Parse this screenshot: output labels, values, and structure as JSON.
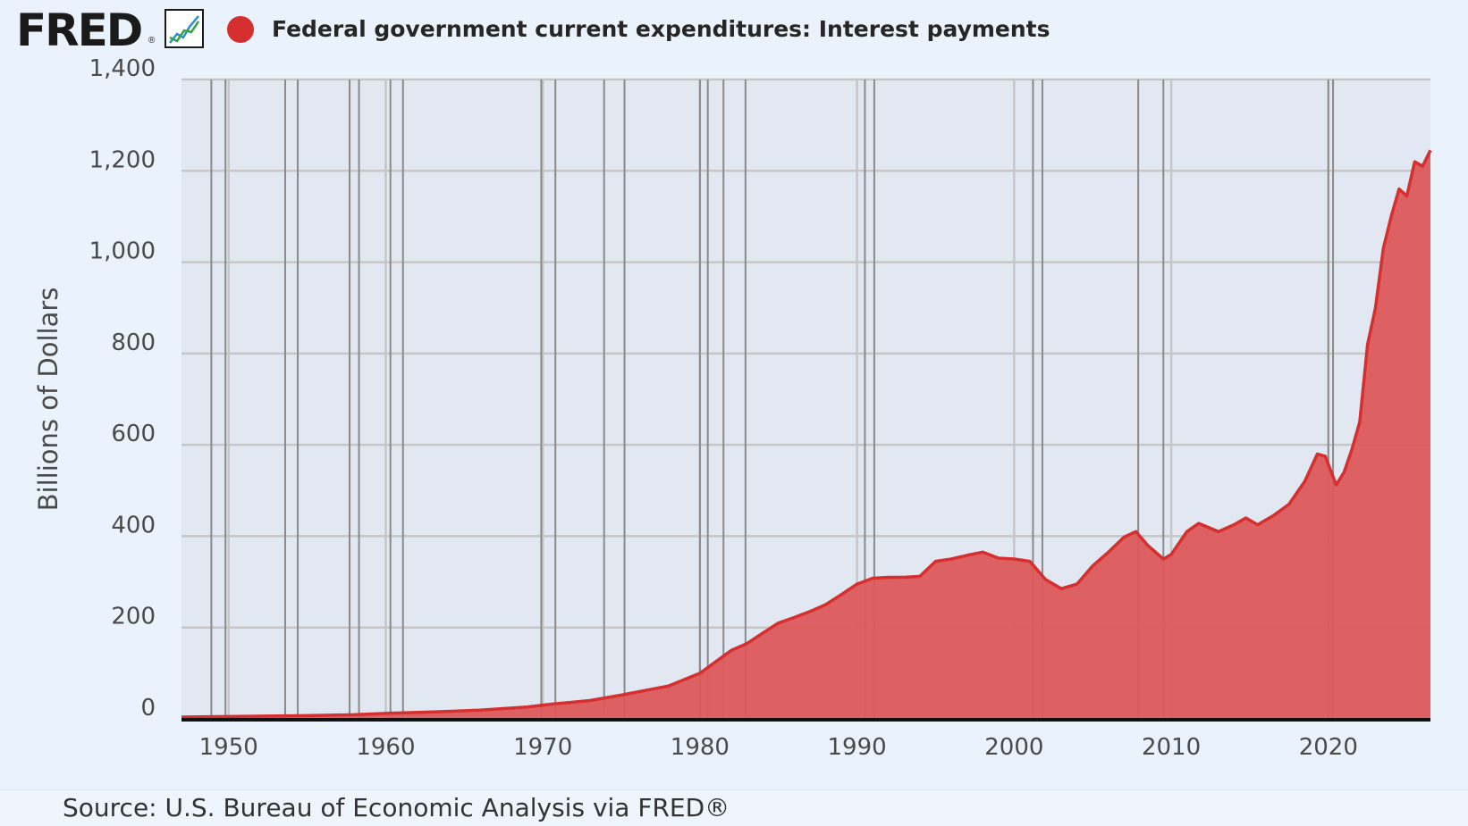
{
  "header": {
    "logo_text": "FRED",
    "logo_mark": "®",
    "graph_icon": "line-graph-icon"
  },
  "source": "Source: U.S. Bureau of Economic Analysis via FRED®",
  "colors": {
    "series": "#d62f2f",
    "series_fill": "#dc5a5a",
    "plot_bg": "#e1e8f1",
    "grid": "#c6c6c6",
    "recession": "#8a8a8a",
    "axis": "#111111"
  },
  "chart_data": {
    "type": "area",
    "title": "Federal government current expenditures: Interest payments",
    "xlabel": "",
    "ylabel": "Billions of Dollars",
    "xlim": [
      1947,
      2026.5
    ],
    "ylim": [
      0,
      1400
    ],
    "x_ticks": [
      "1950",
      "1960",
      "1970",
      "1980",
      "1990",
      "2000",
      "2010",
      "2020"
    ],
    "y_ticks": [
      "0",
      "200",
      "400",
      "600",
      "800",
      "1,000",
      "1,200",
      "1,400"
    ],
    "grid": true,
    "legend": "top-left",
    "recession_lines": [
      1948.9,
      1949.8,
      1953.6,
      1954.4,
      1957.7,
      1958.3,
      1960.3,
      1961.1,
      1969.9,
      1970.8,
      1973.9,
      1975.2,
      1980.0,
      1980.5,
      1981.5,
      1982.9,
      1990.5,
      1991.1,
      2001.2,
      2001.8,
      2007.9,
      2009.5,
      2020.0,
      2020.3
    ],
    "series": [
      {
        "name": "Federal government current expenditures: Interest payments",
        "x": [
          1947,
          1950,
          1955,
          1958,
          1960,
          1963,
          1966,
          1969,
          1970.5,
          1973,
          1975,
          1978,
          1980,
          1981,
          1982,
          1983,
          1984,
          1985,
          1986,
          1987,
          1988,
          1989,
          1990,
          1991,
          1992,
          1993,
          1994,
          1995,
          1996,
          1997,
          1998,
          1999,
          2000,
          2001,
          2002,
          2003,
          2004,
          2005,
          2006,
          2007,
          2007.75,
          2008.5,
          2009.5,
          2010,
          2011,
          2011.75,
          2013,
          2014,
          2014.75,
          2015.5,
          2016.5,
          2017.5,
          2018.5,
          2019.3,
          2019.8,
          2020.5,
          2021,
          2021.5,
          2022,
          2022.5,
          2023,
          2023.5,
          2024,
          2024.5,
          2025,
          2025.5,
          2026,
          2026.5
        ],
        "values": [
          4,
          5,
          7,
          9,
          12,
          15,
          19,
          26,
          32,
          40,
          52,
          72,
          100,
          125,
          150,
          165,
          188,
          210,
          222,
          235,
          250,
          272,
          295,
          308,
          310,
          310,
          312,
          345,
          350,
          358,
          365,
          352,
          350,
          345,
          305,
          285,
          295,
          335,
          365,
          398,
          410,
          380,
          350,
          360,
          410,
          428,
          410,
          425,
          440,
          425,
          445,
          470,
          520,
          580,
          575,
          512,
          540,
          590,
          650,
          820,
          900,
          1030,
          1100,
          1160,
          1145,
          1220,
          1210,
          1245
        ]
      }
    ]
  }
}
